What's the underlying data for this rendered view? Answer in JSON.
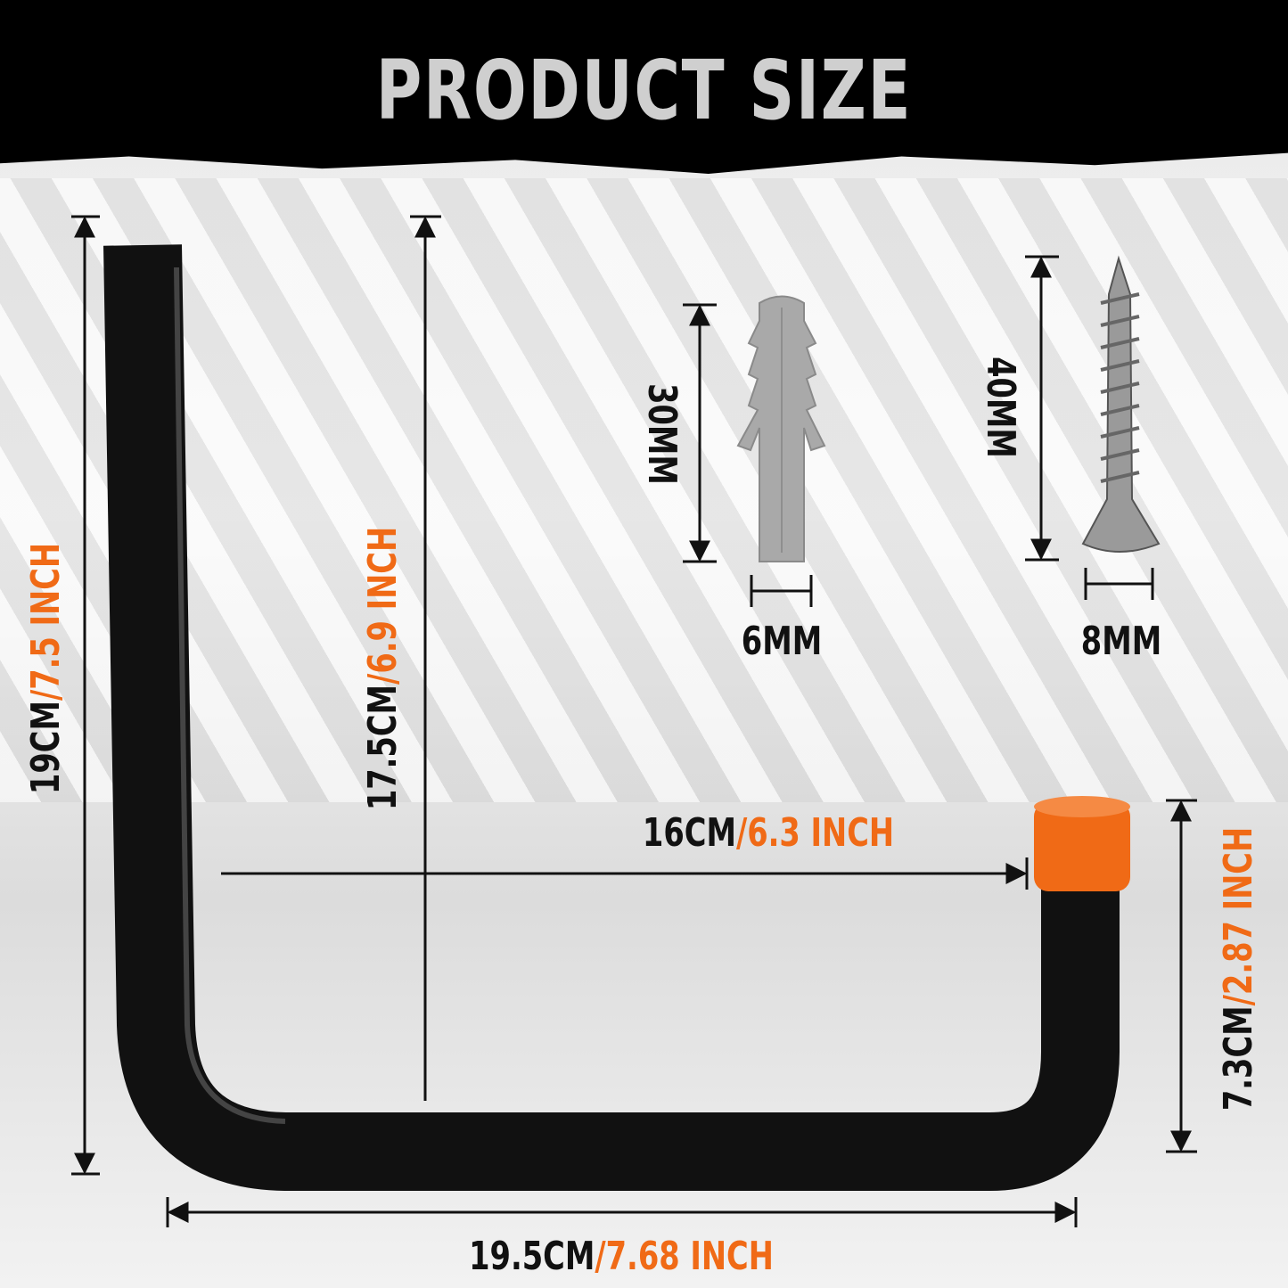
{
  "title": "PRODUCT SIZE",
  "colors": {
    "accent": "#f06a16",
    "hook": "#111111",
    "header": "#000000",
    "title": "#cfcfcf"
  },
  "dimensions": {
    "total_height": {
      "cm": "19CM",
      "inch": "/7.5 INCH"
    },
    "inner_height": {
      "cm": "17.5CM",
      "inch": "/6.9 INCH"
    },
    "inner_depth": {
      "cm": "16CM",
      "inch": "/6.3 INCH"
    },
    "tip_height": {
      "cm": "7.3CM",
      "inch": "/2.87 INCH"
    },
    "total_depth": {
      "cm": "19.5CM",
      "inch": "/7.68 INCH"
    },
    "anchor_length": "30MM",
    "anchor_diameter": "6MM",
    "screw_length": "40MM",
    "screw_diameter": "8MM"
  }
}
